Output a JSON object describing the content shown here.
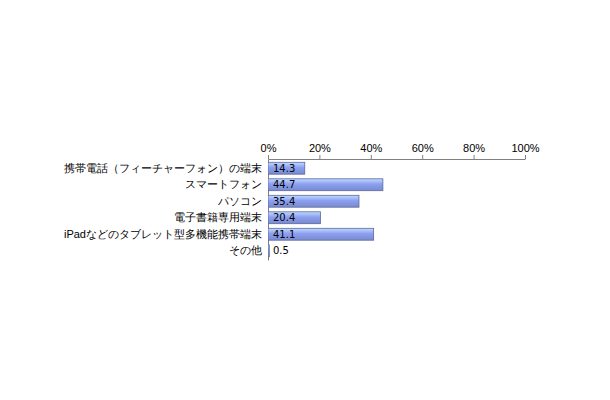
{
  "chart_data": {
    "type": "bar",
    "orientation": "horizontal",
    "categories": [
      "携帯電話（フィーチャーフォン）の端末",
      "スマートフォン",
      "パソコン",
      "電子書籍専用端末",
      "iPadなどのタブレット型多機能携帯端末",
      "その他"
    ],
    "values": [
      14.3,
      44.7,
      35.4,
      20.4,
      41.1,
      0.5
    ],
    "color": "#8c9ff0",
    "xlim": [
      0,
      100
    ],
    "xticks": [
      {
        "value": 0,
        "label": "0%"
      },
      {
        "value": 20,
        "label": "20%"
      },
      {
        "value": 40,
        "label": "40%"
      },
      {
        "value": 60,
        "label": "60%"
      },
      {
        "value": 80,
        "label": "80%"
      },
      {
        "value": 100,
        "label": "100%"
      }
    ],
    "data_labels": true
  }
}
